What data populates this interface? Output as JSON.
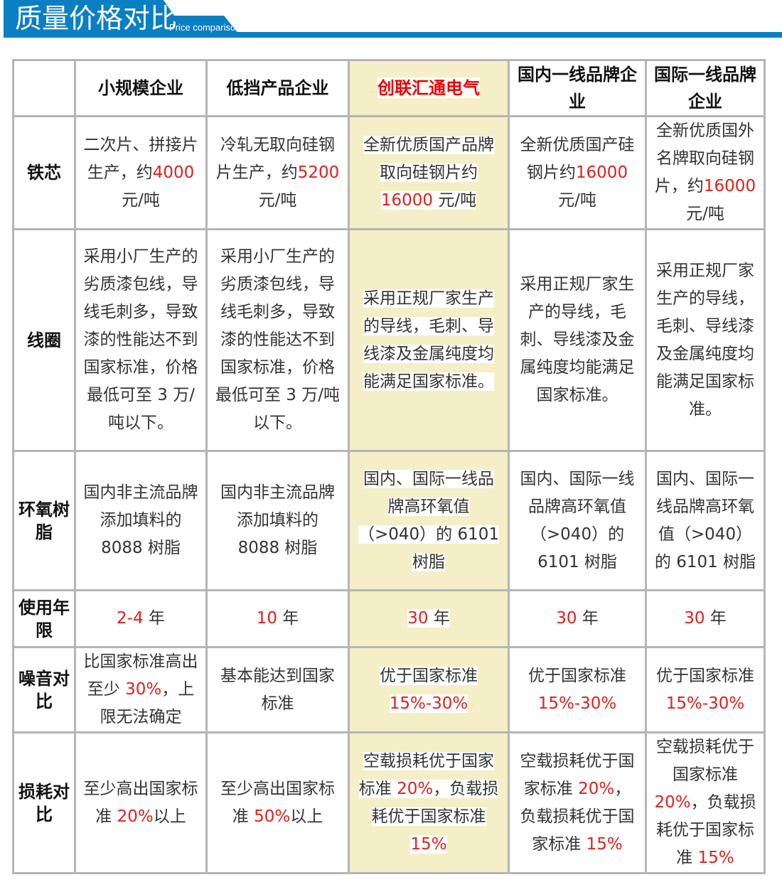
{
  "header": {
    "title": "质量价格对比",
    "subtitle": "Price comparison"
  },
  "colors": {
    "accent": "#0a7fc2",
    "highlight_column": "#f4efc6",
    "emphasis": "#e0201b"
  },
  "columns": [
    "",
    "小规模企业",
    "低挡产品企业",
    "创联汇通电气",
    "国内一线品牌企业",
    "国际一线品牌企业"
  ],
  "highlight_column_index": 3,
  "rows": [
    {
      "label": "铁芯",
      "cells": [
        [
          {
            "t": "二次片、拼接片生产，约"
          },
          {
            "t": "4000",
            "r": 1
          },
          {
            "t": " 元/吨"
          }
        ],
        [
          {
            "t": "冷轧无取向硅钢片生产，约"
          },
          {
            "t": "5200",
            "r": 1
          },
          {
            "t": " 元/吨"
          }
        ],
        [
          {
            "t": "全新优质国产品牌取向硅钢片约"
          },
          {
            "t": "16000",
            "r": 1
          },
          {
            "t": " 元/吨"
          }
        ],
        [
          {
            "t": "全新优质国产硅钢片约"
          },
          {
            "t": "16000",
            "r": 1
          },
          {
            "t": " 元/吨"
          }
        ],
        [
          {
            "t": "全新优质国外名牌取向硅钢片，约"
          },
          {
            "t": "16000",
            "r": 1
          },
          {
            "t": " 元/吨"
          }
        ]
      ]
    },
    {
      "label": "线圈",
      "cells": [
        [
          {
            "t": "采用小厂生产的劣质漆包线，导线毛刺多，导致漆的性能达不到国家标准，价格最低可至 3 万/吨以下。"
          }
        ],
        [
          {
            "t": "采用小厂生产的劣质漆包线，导线毛刺多，导致漆的性能达不到国家标准，价格最低可至 3 万/吨以下。"
          }
        ],
        [
          {
            "t": "采用正规厂家生产的导线，毛刺、导线漆及金属纯度均能满足国家标准。"
          }
        ],
        [
          {
            "t": "采用正规厂家生产的导线，毛刺、导线漆及金属纯度均能满足国家标准。"
          }
        ],
        [
          {
            "t": "采用正规厂家生产的导线，毛刺、导线漆及金属纯度均能满足国家标准。"
          }
        ]
      ]
    },
    {
      "label": "环氧树脂",
      "cells": [
        [
          {
            "t": "国内非主流品牌添加填料的 8088 树脂"
          }
        ],
        [
          {
            "t": "国内非主流品牌添加填料的 8088 树脂"
          }
        ],
        [
          {
            "t": "国内、国际一线品牌高环氧值（>040）的 6101 树脂"
          }
        ],
        [
          {
            "t": "国内、国际一线品牌高环氧值（>040）的 6101 树脂"
          }
        ],
        [
          {
            "t": "国内、国际一线品牌高环氧值（>040）的 6101 树脂"
          }
        ]
      ]
    },
    {
      "label": "使用年限",
      "cells": [
        [
          {
            "t": "2-4",
            "r": 1
          },
          {
            "t": " 年"
          }
        ],
        [
          {
            "t": "10",
            "r": 1
          },
          {
            "t": " 年"
          }
        ],
        [
          {
            "t": "30",
            "r": 1
          },
          {
            "t": " 年"
          }
        ],
        [
          {
            "t": "30",
            "r": 1
          },
          {
            "t": " 年"
          }
        ],
        [
          {
            "t": "30",
            "r": 1
          },
          {
            "t": " 年"
          }
        ]
      ]
    },
    {
      "label": "噪音对比",
      "cells": [
        [
          {
            "t": "比国家标准高出至少 "
          },
          {
            "t": "30%",
            "r": 1
          },
          {
            "t": "，上限无法确定"
          }
        ],
        [
          {
            "t": "基本能达到国家标准"
          }
        ],
        [
          {
            "t": "优于国家标准 "
          },
          {
            "t": "15%-30%",
            "r": 1
          }
        ],
        [
          {
            "t": "优于国家标准 "
          },
          {
            "t": "15%-30%",
            "r": 1
          }
        ],
        [
          {
            "t": "优于国家标准 "
          },
          {
            "t": "15%-30%",
            "r": 1
          }
        ]
      ]
    },
    {
      "label": "损耗对比",
      "cells": [
        [
          {
            "t": "至少高出国家标准 "
          },
          {
            "t": "20%",
            "r": 1
          },
          {
            "t": "以上"
          }
        ],
        [
          {
            "t": "至少高出国家标准 "
          },
          {
            "t": "50%",
            "r": 1
          },
          {
            "t": "以上"
          }
        ],
        [
          {
            "t": "空载损耗优于国家标准 "
          },
          {
            "t": "20%",
            "r": 1
          },
          {
            "t": "，负载损耗优于国家标准 "
          },
          {
            "t": "15%",
            "r": 1
          }
        ],
        [
          {
            "t": "空载损耗优于国家标准 "
          },
          {
            "t": "20%",
            "r": 1
          },
          {
            "t": "，负载损耗优于国家标准 "
          },
          {
            "t": "15%",
            "r": 1
          }
        ],
        [
          {
            "t": "空载损耗优于国家标准 "
          },
          {
            "t": "20%",
            "r": 1
          },
          {
            "t": "，负载损耗优于国家标准 "
          },
          {
            "t": "15%",
            "r": 1
          }
        ]
      ]
    }
  ]
}
